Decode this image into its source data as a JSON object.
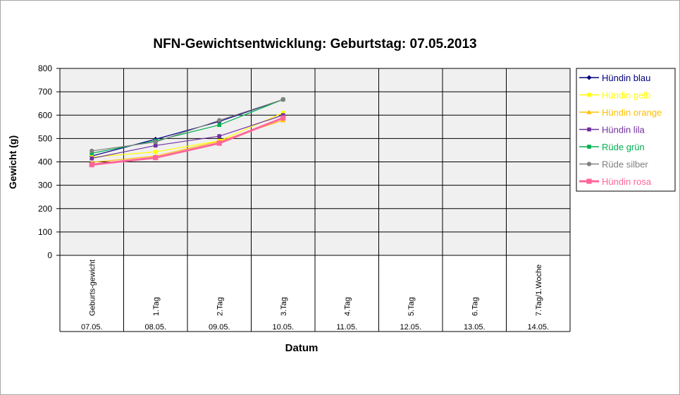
{
  "chart_data": {
    "type": "line",
    "title": "NFN-Gewichtsentwicklung: Geburtstag: 07.05.2013",
    "xlabel": "Datum",
    "ylabel": "Gewicht (g)",
    "ylim": [
      0,
      800
    ],
    "yticks": [
      0,
      100,
      200,
      300,
      400,
      500,
      600,
      700,
      800
    ],
    "grid": true,
    "legend_position": "right",
    "categories": [
      "Geburts-gewicht",
      "1.Tag",
      "2.Tag",
      "3.Tag",
      "4.Tag",
      "5.Tag",
      "6.Tag",
      "7.Tag/1.Woche"
    ],
    "dates": [
      "07.05.",
      "08.05.",
      "09.05.",
      "10.05.",
      "11.05.",
      "12.05.",
      "13.05.",
      "14.05."
    ],
    "series": [
      {
        "name": "Hündin blau",
        "color": "#000080",
        "marker": "diamond",
        "values": [
          425,
          497,
          573,
          667,
          null,
          null,
          null,
          null
        ]
      },
      {
        "name": "Hündin gelb",
        "color": "#ffff00",
        "marker": "square",
        "values": [
          420,
          443,
          490,
          610,
          null,
          null,
          null,
          null
        ]
      },
      {
        "name": "Hündin orange",
        "color": "#ffc000",
        "marker": "triangle",
        "values": [
          398,
          425,
          488,
          578,
          null,
          null,
          null,
          null
        ]
      },
      {
        "name": "Hündin lila",
        "color": "#7030a0",
        "marker": "square",
        "values": [
          415,
          470,
          510,
          600,
          null,
          null,
          null,
          null
        ]
      },
      {
        "name": "Rüde grün",
        "color": "#00b050",
        "marker": "square",
        "values": [
          437,
          490,
          558,
          667,
          null,
          null,
          null,
          null
        ]
      },
      {
        "name": "Rüde silber",
        "color": "#808080",
        "marker": "circle",
        "values": [
          447,
          485,
          578,
          667,
          null,
          null,
          null,
          null
        ]
      },
      {
        "name": "Hündin rosa",
        "color": "#ff6699",
        "marker": "square",
        "thick": true,
        "values": [
          388,
          418,
          480,
          588,
          null,
          null,
          null,
          null
        ]
      }
    ]
  }
}
